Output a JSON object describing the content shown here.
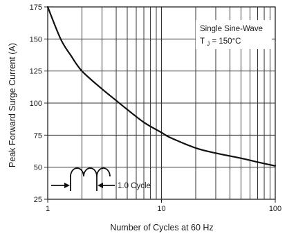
{
  "chart_data": {
    "type": "line",
    "xlabel": "Number of Cycles at 60 Hz",
    "ylabel": "Peak Forward Surge Current (A)",
    "x_scale": "log",
    "xlim": [
      1,
      100
    ],
    "ylim": [
      25,
      175
    ],
    "x_ticks": [
      {
        "value": 1,
        "label": "1"
      },
      {
        "value": 10,
        "label": "10"
      },
      {
        "value": 100,
        "label": "100"
      }
    ],
    "y_ticks": [
      {
        "value": 25,
        "label": "25"
      },
      {
        "value": 50,
        "label": "50"
      },
      {
        "value": 75,
        "label": "75"
      },
      {
        "value": 100,
        "label": "100"
      },
      {
        "value": 125,
        "label": "125"
      },
      {
        "value": 150,
        "label": "150"
      },
      {
        "value": 175,
        "label": "175"
      }
    ],
    "grid": true,
    "series": [
      {
        "x": [
          1,
          1.3,
          1.6,
          2,
          3,
          4,
          5,
          7,
          10,
          12,
          20,
          30,
          50,
          70,
          100
        ],
        "y": [
          175,
          150,
          137,
          125,
          111,
          102,
          95,
          85,
          77,
          73,
          65,
          61,
          57,
          54,
          51
        ]
      }
    ],
    "annotations": {
      "condition_line1": "Single Sine-Wave",
      "condition_line2_main": "T",
      "condition_line2_sub": "J",
      "condition_line2_rest": " = 150°C",
      "cycle_label": "1.0 Cycle"
    }
  },
  "colors": {
    "curve": "#111111",
    "grid": "#333333",
    "frame": "#222222"
  }
}
